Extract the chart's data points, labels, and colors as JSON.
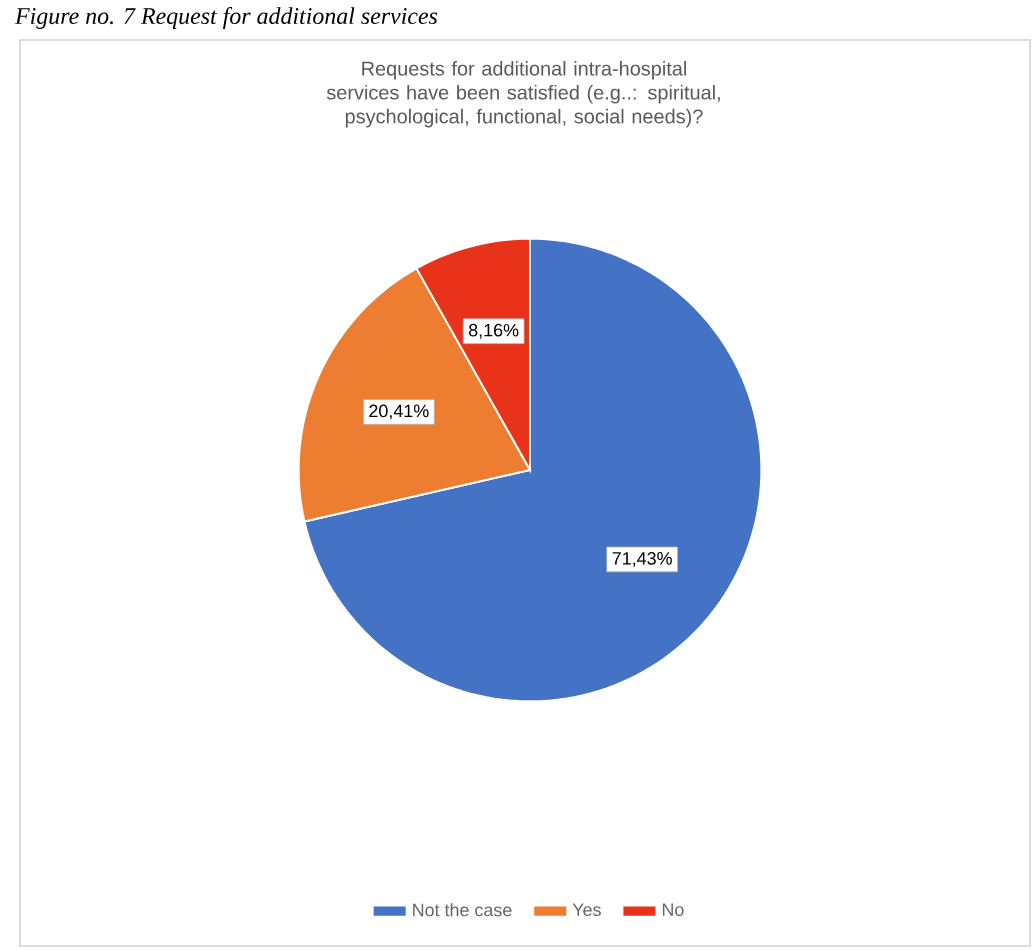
{
  "chart_data": {
    "type": "pie",
    "title": "Requests for additional intra-hospital services have been satisfied (e.g..: spiritual, psychological, functional, social needs)?",
    "annotations": [
      "Figure no. 7 Request for additional services"
    ],
    "categories": [
      "Not the case",
      "Yes",
      "No"
    ],
    "values": [
      71.43,
      20.41,
      8.16
    ],
    "colors": [
      "#4472c4",
      "#ed7d31",
      "#e8321a"
    ],
    "value_labels": [
      "71,43%",
      "20,41%",
      "8,16%"
    ],
    "legend": "bottom"
  }
}
